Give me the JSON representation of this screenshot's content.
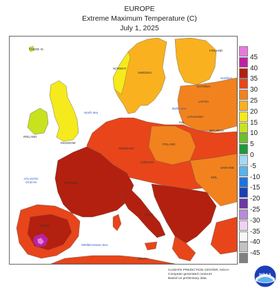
{
  "header": {
    "region": "EUROPE",
    "metric": "Extreme Maximum Temperature (C)",
    "date": "July 1, 2025"
  },
  "legend": {
    "items": [
      {
        "label": "45",
        "color": "#e879e0"
      },
      {
        "label": "40",
        "color": "#c21ea3"
      },
      {
        "label": "35",
        "color": "#b3200f"
      },
      {
        "label": "30",
        "color": "#e8451a"
      },
      {
        "label": "25",
        "color": "#f2821e"
      },
      {
        "label": "20",
        "color": "#f9b11f"
      },
      {
        "label": "15",
        "color": "#f5ea1c"
      },
      {
        "label": "10",
        "color": "#c9e21e"
      },
      {
        "label": "5",
        "color": "#6dbf2a"
      },
      {
        "label": "0",
        "color": "#1f9a3a"
      },
      {
        "label": "-5",
        "color": "#a6d8f2"
      },
      {
        "label": "-10",
        "color": "#5ab1ec"
      },
      {
        "label": "-15",
        "color": "#1e73e0"
      },
      {
        "label": "-20",
        "color": "#1c3fb8"
      },
      {
        "label": "-25",
        "color": "#6a3aa6"
      },
      {
        "label": "-30",
        "color": "#b98ad9"
      },
      {
        "label": "-35",
        "color": "#efd3f1"
      },
      {
        "label": "-40",
        "color": "#f7f7f7"
      },
      {
        "label": "-45",
        "color": "#c2c2c2"
      },
      {
        "label": "",
        "color": "#808080"
      }
    ]
  },
  "map_labels": {
    "faroe": "FAROE IS.",
    "norway": "NORWAY",
    "sweden": "SWEDEN",
    "finland": "FINLAND",
    "estonia": "ESTONIA",
    "latvia": "LATVIA",
    "lithuania": "LITHUANIA",
    "kal": "Kal.",
    "belarus": "BELARUS",
    "ireland": "IRELAND",
    "kingdom": "KINGDOM",
    "poland": "POLAND",
    "germany": "GERMANY",
    "czechia": "CZECHIA",
    "ukraine": "UKRAINE",
    "france": "FRANCE",
    "italy": "ITALY",
    "spain": "SPAIN",
    "malta": "MALTA",
    "mol": "MOL"
  },
  "sea_labels": {
    "north_sea": "North Sea",
    "baltic_sea": "Baltic Sea",
    "atlantic": "ATLANTIC OCEAN",
    "mediterranean": "Mediterranean Sea",
    "northern": "Northern"
  },
  "credits": {
    "line1": "CLIMATE PREDICTION CENTER, NOAA",
    "line2": "Computer generated contours",
    "line3": "Based on preliminary data"
  },
  "logo": {
    "text": "NOAA"
  }
}
